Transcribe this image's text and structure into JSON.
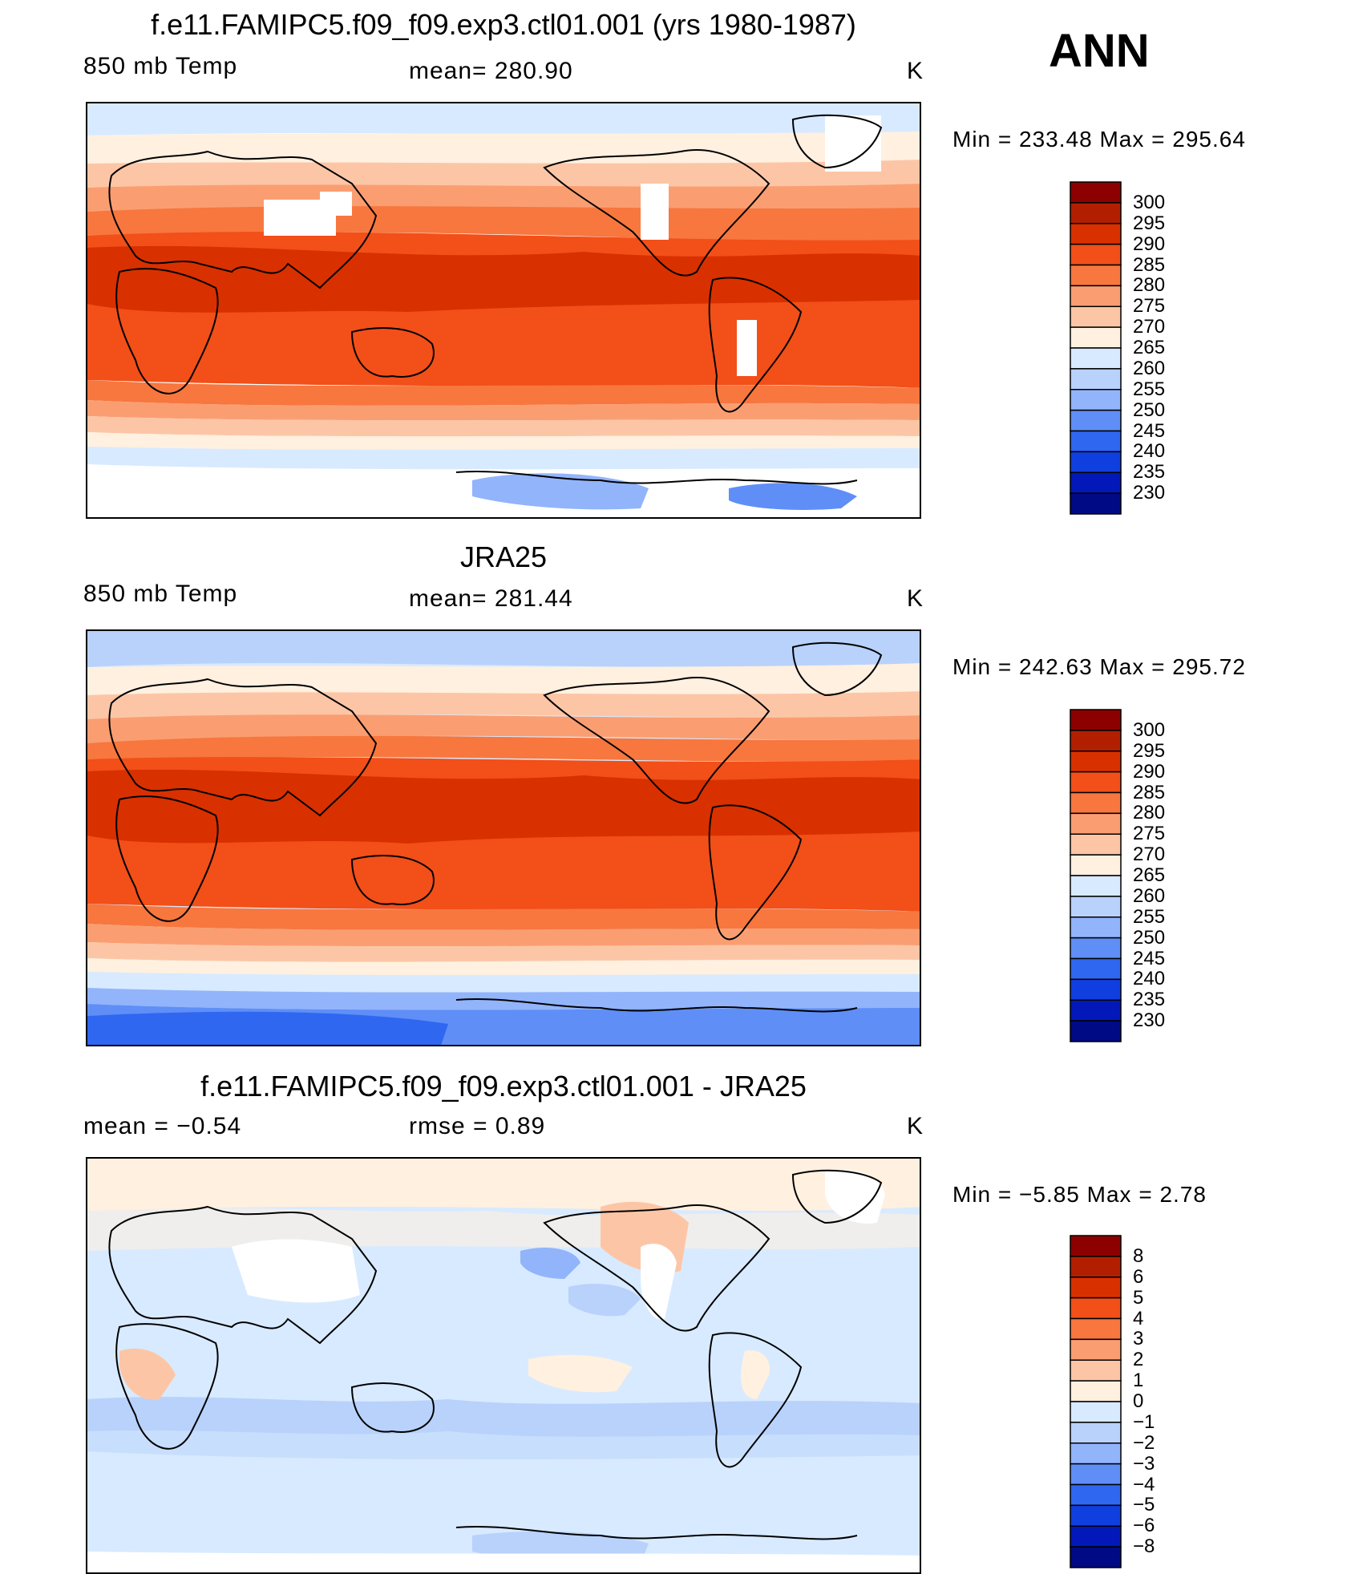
{
  "season": "ANN",
  "panels": [
    {
      "title": "f.e11.FAMIPC5.f09_f09.exp3.ctl01.001 (yrs 1980-1987)",
      "left": "850 mb Temp",
      "middle": "mean= 280.90",
      "right": "K",
      "minmax": "Min  =  233.48  Max  =  295.64",
      "levels": [
        "300",
        "295",
        "290",
        "285",
        "280",
        "275",
        "270",
        "265",
        "260",
        "255",
        "250",
        "245",
        "240",
        "235",
        "230"
      ]
    },
    {
      "title": "JRA25",
      "left": "850 mb Temp",
      "middle": "mean= 281.44",
      "right": "K",
      "minmax": "Min  =  242.63  Max  =  295.72",
      "levels": [
        "300",
        "295",
        "290",
        "285",
        "280",
        "275",
        "270",
        "265",
        "260",
        "255",
        "250",
        "245",
        "240",
        "235",
        "230"
      ]
    },
    {
      "title": "f.e11.FAMIPC5.f09_f09.exp3.ctl01.001 - JRA25",
      "left": "mean =    −0.54",
      "middle": "rmse =     0.89",
      "right": "K",
      "minmax": "Min  =    −5.85  Max  =      2.78",
      "levels": [
        "8",
        "6",
        "5",
        "4",
        "3",
        "2",
        "1",
        "0",
        "−1",
        "−2",
        "−3",
        "−4",
        "−5",
        "−6",
        "−8"
      ]
    }
  ],
  "colors": {
    "temp_palette": [
      "#8c0000",
      "#b21f00",
      "#d93000",
      "#f24f19",
      "#f7773f",
      "#fa9e72",
      "#fcc6a6",
      "#fff0e0",
      "#d8eaff",
      "#b8d2fb",
      "#92b4fb",
      "#5f8ef7",
      "#2f67f0",
      "#103fdf",
      "#0318b8",
      "#000a85"
    ],
    "diff_palette": [
      "#8c0000",
      "#b21f00",
      "#d93000",
      "#f24f19",
      "#f7773f",
      "#fa9e72",
      "#fcc6a6",
      "#fff0e0",
      "#d8eaff",
      "#b8d2fb",
      "#92b4fb",
      "#5f8ef7",
      "#2f67f0",
      "#103fdf",
      "#0318b8",
      "#000a85"
    ]
  }
}
